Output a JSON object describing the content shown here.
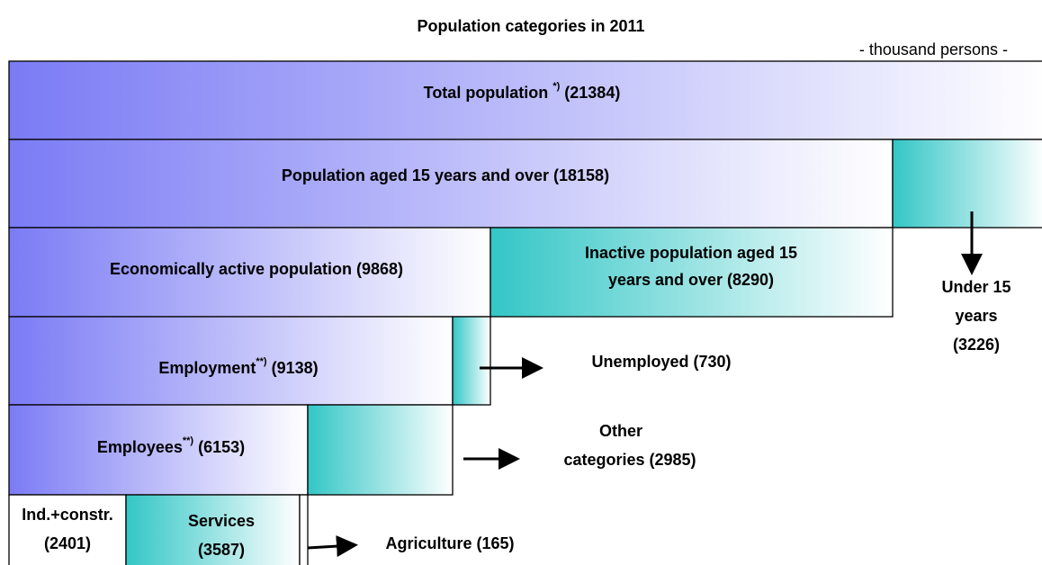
{
  "title": "Population categories in 2011",
  "unit": "- thousand persons -",
  "nodes": [
    {
      "label": "Total population",
      "note": "*)",
      "value": "(21384)"
    },
    {
      "label": "Population aged 15 years and over (18158)"
    },
    {
      "lines": [
        "Under 15",
        "years",
        "(3226)"
      ]
    },
    {
      "label": "Economically active population (9868)"
    },
    {
      "lines": [
        "Inactive population aged 15",
        "years and over (8290)"
      ]
    },
    {
      "label": "Employment",
      "note": "**)",
      "value": "(9138)"
    },
    {
      "label": "Unemployed  (730)"
    },
    {
      "label": "Employees",
      "note": "**)",
      "value": "(6153)"
    },
    {
      "lines": [
        "Other",
        "categories (2985)"
      ]
    },
    {
      "lines": [
        "Ind.+constr.",
        "(2401)"
      ]
    },
    {
      "lines": [
        "Services",
        "(3587)"
      ]
    },
    {
      "label": "Agriculture  (165)"
    }
  ]
}
